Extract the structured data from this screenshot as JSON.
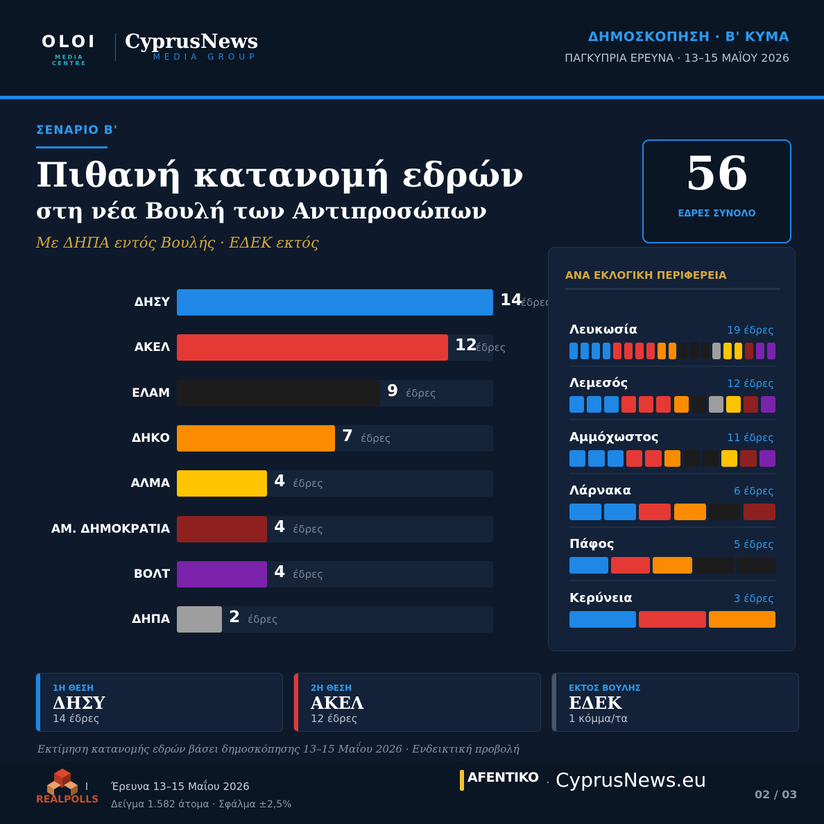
{
  "header": {
    "oloi_title": "OLOI",
    "oloi_sub": "MEDIA CENTRE",
    "cn_title": "CyprusNews",
    "cn_sub": "MEDIA GROUP",
    "poll_label": "ΔΗΜΟΣΚΟΠΗΣΗ · Β' ΚΥΜΑ",
    "poll_sub": "ΠΑΓΚΥΠΡΙΑ ΕΡΕΥΝΑ · 13–15 ΜΑΪΟΥ 2026"
  },
  "scenario": "ΣΕΝΑΡΙΟ Β'",
  "title": "Πιθανή κατανομή εδρών",
  "subtitle": "στη νέα Βουλή των Αντιπροσώπων",
  "note": "Με ΔΗΠΑ εντός Βουλής · ΕΔΕΚ εκτός",
  "total": {
    "value": "56",
    "label": "ΕΔΡΕΣ ΣΥΝΟΛΟ"
  },
  "chart_data": {
    "type": "bar",
    "orientation": "horizontal",
    "unit_label": "έδρες",
    "xlim": [
      0,
      14
    ],
    "categories": [
      "ΔΗΣΥ",
      "ΑΚΕΛ",
      "ΕΛΑΜ",
      "ΔΗΚΟ",
      "ΑΛΜΑ",
      "ΑΜ. ΔΗΜΟΚΡΑΤΙΑ",
      "ΒΟΛΤ",
      "ΔΗΠΑ"
    ],
    "values": [
      14,
      12,
      9,
      7,
      4,
      4,
      4,
      2
    ],
    "colors": [
      "#1f87e5",
      "#e53935",
      "#1c1c1c",
      "#fb8c00",
      "#ffc400",
      "#8e2020",
      "#7b23ab",
      "#9e9e9e"
    ]
  },
  "regions": {
    "title": "ΑΝΑ ΕΚΛΟΓΙΚΗ ΠΕΡΙΦΕΡΕΙΑ",
    "items": [
      {
        "name": "Λευκωσία",
        "seats_label": "19 έδρες",
        "seats": [
          [
            "#1f87e5",
            4
          ],
          [
            "#e53935",
            4
          ],
          [
            "#fb8c00",
            2
          ],
          [
            "#1c1c1c",
            3
          ],
          [
            "#9e9e9e",
            1
          ],
          [
            "#ffc400",
            2
          ],
          [
            "#8e2020",
            1
          ],
          [
            "#7b23ab",
            2
          ]
        ]
      },
      {
        "name": "Λεμεσός",
        "seats_label": "12 έδρες",
        "seats": [
          [
            "#1f87e5",
            3
          ],
          [
            "#e53935",
            3
          ],
          [
            "#fb8c00",
            1
          ],
          [
            "#1c1c1c",
            1
          ],
          [
            "#9e9e9e",
            1
          ],
          [
            "#ffc400",
            1
          ],
          [
            "#8e2020",
            1
          ],
          [
            "#7b23ab",
            1
          ]
        ]
      },
      {
        "name": "Αμμόχωστος",
        "seats_label": "11 έδρες",
        "seats": [
          [
            "#1f87e5",
            3
          ],
          [
            "#e53935",
            2
          ],
          [
            "#fb8c00",
            1
          ],
          [
            "#1c1c1c",
            2
          ],
          [
            "#ffc400",
            1
          ],
          [
            "#8e2020",
            1
          ],
          [
            "#7b23ab",
            1
          ]
        ]
      },
      {
        "name": "Λάρνακα",
        "seats_label": "6 έδρες",
        "seats": [
          [
            "#1f87e5",
            2
          ],
          [
            "#e53935",
            1
          ],
          [
            "#fb8c00",
            1
          ],
          [
            "#1c1c1c",
            1
          ],
          [
            "#8e2020",
            1
          ]
        ]
      },
      {
        "name": "Πάφος",
        "seats_label": "5 έδρες",
        "seats": [
          [
            "#1f87e5",
            1
          ],
          [
            "#e53935",
            1
          ],
          [
            "#fb8c00",
            1
          ],
          [
            "#1c1c1c",
            2
          ]
        ]
      },
      {
        "name": "Κερύνεια",
        "seats_label": "3 έδρες",
        "seats": [
          [
            "#1f87e5",
            1
          ],
          [
            "#e53935",
            1
          ],
          [
            "#fb8c00",
            1
          ]
        ]
      }
    ]
  },
  "cards": [
    {
      "key": "1Η ΘΕΣΗ",
      "value": "ΔΗΣΥ",
      "sub": "14 έδρες",
      "accent": "#1f87e5",
      "keycolor": "#2d9bf0"
    },
    {
      "key": "2Η ΘΕΣΗ",
      "value": "ΑΚΕΛ",
      "sub": "12 έδρες",
      "accent": "#e53935",
      "keycolor": "#2d9bf0"
    },
    {
      "key": "ΕΚΤΟΣ ΒΟΥΛΗΣ",
      "value": "ΕΔΕΚ",
      "sub": "1 κόμμα/τα",
      "accent": "#4a5568",
      "keycolor": "#2d9bf0"
    }
  ],
  "footnote": "Εκτίμηση κατανομής εδρών βάσει δημοσκόπησης 13–15 Μαΐου 2026 · Ενδεικτική προβολή",
  "footer": {
    "realpolls": "REALPOLLS",
    "line1": "Έρευνα 13–15 Μαΐου 2026",
    "line2": "Δείγμα 1.582 άτομα · Σφάλμα ±2,5%",
    "afentiko": "AFENTIKO",
    "cyprusnews": "CyprusNews.eu",
    "page": "02 / 03"
  }
}
